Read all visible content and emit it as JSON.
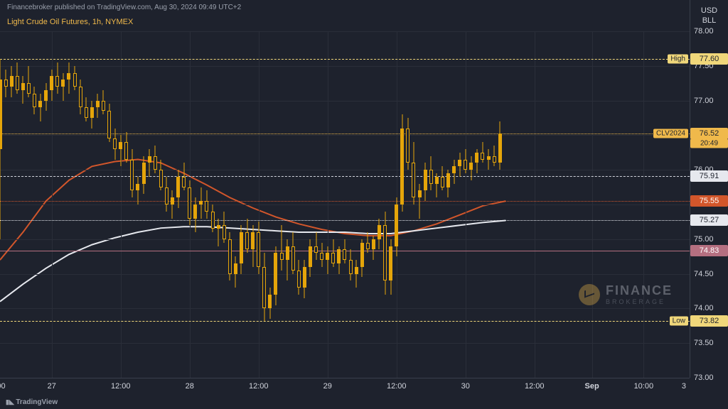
{
  "publish_line": "Financebroker published on TradingView.com, Aug 30, 2024 09:49 UTC+2",
  "title_line": "Light Crude Oil Futures, 1h, NYMEX",
  "footer": "TradingView",
  "unit_top": "USD",
  "unit_bottom": "BLL",
  "watermark": {
    "line1": "FINANCE",
    "line2": "BROKERAGE"
  },
  "palette": {
    "bg": "#1e222d",
    "grid": "#2a2e39",
    "axis_text": "#d1d4dc",
    "title": "#f0b94b",
    "candle_up": "#e5a50a",
    "candle_dn": "#e5a50a",
    "candle_wick": "#e5a50a",
    "candle_body_border": "#1e222d"
  },
  "y_axis": {
    "min": 73.0,
    "max": 78.0,
    "ticks": [
      73.0,
      73.5,
      74.0,
      74.5,
      75.0,
      75.5,
      76.0,
      76.5,
      77.0,
      77.5,
      78.0
    ],
    "decimals": 2
  },
  "x_axis": {
    "span": 120,
    "ticks": [
      {
        "i": 0,
        "label": ":00"
      },
      {
        "i": 9,
        "label": "27"
      },
      {
        "i": 21,
        "label": "12:00"
      },
      {
        "i": 33,
        "label": "28"
      },
      {
        "i": 45,
        "label": "12:00"
      },
      {
        "i": 57,
        "label": "29"
      },
      {
        "i": 69,
        "label": "12:00"
      },
      {
        "i": 81,
        "label": "30"
      },
      {
        "i": 93,
        "label": "12:00"
      },
      {
        "i": 103,
        "label": "Sep"
      },
      {
        "i": 112,
        "label": "10:00"
      },
      {
        "i": 119,
        "label": "3"
      }
    ],
    "vgrids": [
      9,
      21,
      33,
      45,
      57,
      69,
      81,
      93,
      103,
      112
    ]
  },
  "hlines": [
    {
      "name": "high",
      "y": 77.6,
      "color": "#f0d77a",
      "dash": true,
      "left_label": "High",
      "left_label_bg": "#f0d77a",
      "left_label_fg": "#1e222d",
      "right_label": "77.60",
      "right_label_bg": "#f0d77a",
      "right_label_fg": "#1e222d"
    },
    {
      "name": "current",
      "y": 76.52,
      "color": "#f0b94b",
      "dash": true,
      "right_badge": "CLV2024",
      "right_label": "76.52",
      "right_sublabel": "20:49",
      "right_label_bg": "#f0b94b",
      "right_label_fg": "#1e222d",
      "badge_bg": "#f0b94b",
      "badge_fg": "#1e222d"
    },
    {
      "name": "prevclose",
      "y": 75.91,
      "color": "#d1d4dc",
      "dash": true,
      "right_label": "75.91",
      "right_label_bg": "#e6e8ee",
      "right_label_fg": "#1e222d"
    },
    {
      "name": "ma1-end",
      "y": 75.55,
      "color": "#d2562b",
      "dash": false,
      "right_label": "75.55",
      "right_label_bg": "#d2562b",
      "right_label_fg": "#ffffff"
    },
    {
      "name": "ma2-end",
      "y": 75.27,
      "color": "#e6e8ee",
      "dash": false,
      "right_label": "75.27",
      "right_label_bg": "#e6e8ee",
      "right_label_fg": "#1e222d"
    },
    {
      "name": "support",
      "y": 74.83,
      "color": "#b56f80",
      "dash": false,
      "solid": true,
      "right_label": "74.83",
      "right_label_bg": "#b56f80",
      "right_label_fg": "#ffffff"
    },
    {
      "name": "low",
      "y": 73.82,
      "color": "#f0d77a",
      "dash": true,
      "left_label": "Low",
      "left_label_bg": "#f0d77a",
      "left_label_fg": "#1e222d",
      "right_label": "73.82",
      "right_label_bg": "#f0d77a",
      "right_label_fg": "#1e222d"
    }
  ],
  "ma_lines": [
    {
      "name": "ma-orange",
      "color": "#d2562b",
      "width": 2,
      "points": [
        [
          0,
          74.7
        ],
        [
          4,
          75.1
        ],
        [
          8,
          75.55
        ],
        [
          12,
          75.85
        ],
        [
          16,
          76.05
        ],
        [
          20,
          76.12
        ],
        [
          24,
          76.15
        ],
        [
          28,
          76.1
        ],
        [
          32,
          75.95
        ],
        [
          36,
          75.78
        ],
        [
          40,
          75.6
        ],
        [
          44,
          75.45
        ],
        [
          48,
          75.32
        ],
        [
          52,
          75.22
        ],
        [
          56,
          75.14
        ],
        [
          60,
          75.08
        ],
        [
          64,
          75.05
        ],
        [
          68,
          75.05
        ],
        [
          72,
          75.12
        ],
        [
          76,
          75.22
        ],
        [
          80,
          75.35
        ],
        [
          84,
          75.48
        ],
        [
          88,
          75.55
        ]
      ]
    },
    {
      "name": "ma-white",
      "color": "#e6e8ee",
      "width": 2,
      "points": [
        [
          0,
          74.1
        ],
        [
          4,
          74.35
        ],
        [
          8,
          74.58
        ],
        [
          12,
          74.78
        ],
        [
          16,
          74.92
        ],
        [
          20,
          75.02
        ],
        [
          24,
          75.1
        ],
        [
          28,
          75.16
        ],
        [
          32,
          75.18
        ],
        [
          36,
          75.18
        ],
        [
          40,
          75.16
        ],
        [
          44,
          75.14
        ],
        [
          48,
          75.12
        ],
        [
          52,
          75.1
        ],
        [
          56,
          75.1
        ],
        [
          60,
          75.1
        ],
        [
          64,
          75.08
        ],
        [
          68,
          75.08
        ],
        [
          72,
          75.12
        ],
        [
          76,
          75.16
        ],
        [
          80,
          75.2
        ],
        [
          84,
          75.24
        ],
        [
          88,
          75.27
        ]
      ]
    }
  ],
  "candles": [
    {
      "i": 0,
      "o": 76.3,
      "h": 77.6,
      "l": 75.0,
      "c": 77.3
    },
    {
      "i": 1,
      "o": 77.3,
      "h": 77.45,
      "l": 77.05,
      "c": 77.2
    },
    {
      "i": 2,
      "o": 77.2,
      "h": 77.5,
      "l": 77.05,
      "c": 77.35
    },
    {
      "i": 3,
      "o": 77.35,
      "h": 77.55,
      "l": 77.1,
      "c": 77.15
    },
    {
      "i": 4,
      "o": 77.15,
      "h": 77.35,
      "l": 76.95,
      "c": 77.25
    },
    {
      "i": 5,
      "o": 77.25,
      "h": 77.5,
      "l": 77.05,
      "c": 77.1
    },
    {
      "i": 6,
      "o": 77.1,
      "h": 77.2,
      "l": 76.8,
      "c": 76.9
    },
    {
      "i": 7,
      "o": 76.9,
      "h": 77.1,
      "l": 76.7,
      "c": 77.0
    },
    {
      "i": 8,
      "o": 77.0,
      "h": 77.25,
      "l": 76.85,
      "c": 77.15
    },
    {
      "i": 9,
      "o": 77.15,
      "h": 77.45,
      "l": 77.0,
      "c": 77.35
    },
    {
      "i": 10,
      "o": 77.35,
      "h": 77.55,
      "l": 77.1,
      "c": 77.2
    },
    {
      "i": 11,
      "o": 77.2,
      "h": 77.4,
      "l": 77.0,
      "c": 77.3
    },
    {
      "i": 12,
      "o": 77.3,
      "h": 77.55,
      "l": 77.1,
      "c": 77.4
    },
    {
      "i": 13,
      "o": 77.4,
      "h": 77.5,
      "l": 77.15,
      "c": 77.2
    },
    {
      "i": 14,
      "o": 77.2,
      "h": 77.3,
      "l": 76.8,
      "c": 76.9
    },
    {
      "i": 15,
      "o": 76.9,
      "h": 77.05,
      "l": 76.7,
      "c": 76.75
    },
    {
      "i": 16,
      "o": 76.75,
      "h": 77.0,
      "l": 76.6,
      "c": 76.9
    },
    {
      "i": 17,
      "o": 76.9,
      "h": 77.1,
      "l": 76.75,
      "c": 77.0
    },
    {
      "i": 18,
      "o": 77.0,
      "h": 77.15,
      "l": 76.8,
      "c": 76.85
    },
    {
      "i": 19,
      "o": 76.85,
      "h": 76.95,
      "l": 76.4,
      "c": 76.45
    },
    {
      "i": 20,
      "o": 76.45,
      "h": 76.6,
      "l": 76.15,
      "c": 76.3
    },
    {
      "i": 21,
      "o": 76.3,
      "h": 76.5,
      "l": 76.05,
      "c": 76.4
    },
    {
      "i": 22,
      "o": 76.4,
      "h": 76.55,
      "l": 76.1,
      "c": 76.15
    },
    {
      "i": 23,
      "o": 76.15,
      "h": 76.3,
      "l": 75.6,
      "c": 75.7
    },
    {
      "i": 24,
      "o": 75.7,
      "h": 75.9,
      "l": 75.5,
      "c": 75.8
    },
    {
      "i": 25,
      "o": 75.8,
      "h": 76.2,
      "l": 75.65,
      "c": 76.1
    },
    {
      "i": 26,
      "o": 76.1,
      "h": 76.3,
      "l": 75.9,
      "c": 76.2
    },
    {
      "i": 27,
      "o": 76.2,
      "h": 76.35,
      "l": 75.95,
      "c": 76.0
    },
    {
      "i": 28,
      "o": 76.0,
      "h": 76.15,
      "l": 75.7,
      "c": 75.75
    },
    {
      "i": 29,
      "o": 75.75,
      "h": 75.9,
      "l": 75.4,
      "c": 75.5
    },
    {
      "i": 30,
      "o": 75.5,
      "h": 75.7,
      "l": 75.3,
      "c": 75.6
    },
    {
      "i": 31,
      "o": 75.6,
      "h": 76.0,
      "l": 75.45,
      "c": 75.9
    },
    {
      "i": 32,
      "o": 75.9,
      "h": 76.1,
      "l": 75.7,
      "c": 75.75
    },
    {
      "i": 33,
      "o": 75.75,
      "h": 75.85,
      "l": 75.2,
      "c": 75.3
    },
    {
      "i": 34,
      "o": 75.3,
      "h": 75.6,
      "l": 75.1,
      "c": 75.5
    },
    {
      "i": 35,
      "o": 75.5,
      "h": 75.75,
      "l": 75.3,
      "c": 75.55
    },
    {
      "i": 36,
      "o": 75.55,
      "h": 75.7,
      "l": 75.3,
      "c": 75.4
    },
    {
      "i": 37,
      "o": 75.4,
      "h": 75.5,
      "l": 75.1,
      "c": 75.15
    },
    {
      "i": 38,
      "o": 75.15,
      "h": 75.3,
      "l": 74.9,
      "c": 75.2
    },
    {
      "i": 39,
      "o": 75.2,
      "h": 75.4,
      "l": 74.95,
      "c": 75.0
    },
    {
      "i": 40,
      "o": 75.0,
      "h": 75.1,
      "l": 74.4,
      "c": 74.5
    },
    {
      "i": 41,
      "o": 74.5,
      "h": 74.75,
      "l": 74.3,
      "c": 74.65
    },
    {
      "i": 42,
      "o": 74.65,
      "h": 75.2,
      "l": 74.5,
      "c": 75.1
    },
    {
      "i": 43,
      "o": 75.1,
      "h": 75.3,
      "l": 74.8,
      "c": 74.85
    },
    {
      "i": 44,
      "o": 74.85,
      "h": 75.2,
      "l": 74.6,
      "c": 75.1
    },
    {
      "i": 45,
      "o": 75.1,
      "h": 75.25,
      "l": 74.5,
      "c": 74.6
    },
    {
      "i": 46,
      "o": 74.6,
      "h": 74.8,
      "l": 73.82,
      "c": 74.0
    },
    {
      "i": 47,
      "o": 74.0,
      "h": 74.3,
      "l": 73.85,
      "c": 74.2
    },
    {
      "i": 48,
      "o": 74.2,
      "h": 74.9,
      "l": 74.05,
      "c": 74.8
    },
    {
      "i": 49,
      "o": 74.8,
      "h": 75.2,
      "l": 74.55,
      "c": 74.7
    },
    {
      "i": 50,
      "o": 74.7,
      "h": 75.0,
      "l": 74.4,
      "c": 74.9
    },
    {
      "i": 51,
      "o": 74.9,
      "h": 75.1,
      "l": 74.5,
      "c": 74.55
    },
    {
      "i": 52,
      "o": 74.55,
      "h": 74.7,
      "l": 74.2,
      "c": 74.3
    },
    {
      "i": 53,
      "o": 74.3,
      "h": 74.7,
      "l": 74.15,
      "c": 74.6
    },
    {
      "i": 54,
      "o": 74.6,
      "h": 75.0,
      "l": 74.45,
      "c": 74.9
    },
    {
      "i": 55,
      "o": 74.9,
      "h": 75.1,
      "l": 74.7,
      "c": 74.8
    },
    {
      "i": 56,
      "o": 74.8,
      "h": 74.95,
      "l": 74.6,
      "c": 74.7
    },
    {
      "i": 57,
      "o": 74.7,
      "h": 74.9,
      "l": 74.5,
      "c": 74.8
    },
    {
      "i": 58,
      "o": 74.8,
      "h": 75.0,
      "l": 74.6,
      "c": 74.65
    },
    {
      "i": 59,
      "o": 74.65,
      "h": 74.9,
      "l": 74.5,
      "c": 74.85
    },
    {
      "i": 60,
      "o": 74.85,
      "h": 75.0,
      "l": 74.65,
      "c": 74.7
    },
    {
      "i": 61,
      "o": 74.7,
      "h": 74.85,
      "l": 74.4,
      "c": 74.5
    },
    {
      "i": 62,
      "o": 74.5,
      "h": 74.7,
      "l": 74.3,
      "c": 74.6
    },
    {
      "i": 63,
      "o": 74.6,
      "h": 75.0,
      "l": 74.45,
      "c": 74.95
    },
    {
      "i": 64,
      "o": 74.95,
      "h": 75.1,
      "l": 74.8,
      "c": 74.85
    },
    {
      "i": 65,
      "o": 74.85,
      "h": 75.05,
      "l": 74.7,
      "c": 75.0
    },
    {
      "i": 66,
      "o": 75.0,
      "h": 75.3,
      "l": 74.85,
      "c": 75.2
    },
    {
      "i": 67,
      "o": 75.2,
      "h": 75.4,
      "l": 74.2,
      "c": 74.4
    },
    {
      "i": 68,
      "o": 74.4,
      "h": 75.0,
      "l": 74.2,
      "c": 74.9
    },
    {
      "i": 69,
      "o": 74.9,
      "h": 75.6,
      "l": 74.75,
      "c": 75.5
    },
    {
      "i": 70,
      "o": 75.5,
      "h": 76.8,
      "l": 75.4,
      "c": 76.6
    },
    {
      "i": 71,
      "o": 76.6,
      "h": 76.75,
      "l": 76.0,
      "c": 76.1
    },
    {
      "i": 72,
      "o": 76.1,
      "h": 76.4,
      "l": 75.5,
      "c": 75.6
    },
    {
      "i": 73,
      "o": 75.6,
      "h": 75.8,
      "l": 75.3,
      "c": 75.7
    },
    {
      "i": 74,
      "o": 75.7,
      "h": 76.1,
      "l": 75.55,
      "c": 76.0
    },
    {
      "i": 75,
      "o": 76.0,
      "h": 76.2,
      "l": 75.7,
      "c": 75.8
    },
    {
      "i": 76,
      "o": 75.8,
      "h": 75.95,
      "l": 75.6,
      "c": 75.9
    },
    {
      "i": 77,
      "o": 75.9,
      "h": 76.05,
      "l": 75.7,
      "c": 75.75
    },
    {
      "i": 78,
      "o": 75.75,
      "h": 76.0,
      "l": 75.6,
      "c": 75.95
    },
    {
      "i": 79,
      "o": 75.95,
      "h": 76.15,
      "l": 75.8,
      "c": 76.05
    },
    {
      "i": 80,
      "o": 76.05,
      "h": 76.25,
      "l": 75.9,
      "c": 76.15
    },
    {
      "i": 81,
      "o": 76.15,
      "h": 76.3,
      "l": 75.95,
      "c": 76.0
    },
    {
      "i": 82,
      "o": 76.0,
      "h": 76.2,
      "l": 75.85,
      "c": 76.1
    },
    {
      "i": 83,
      "o": 76.1,
      "h": 76.3,
      "l": 75.95,
      "c": 76.25
    },
    {
      "i": 84,
      "o": 76.25,
      "h": 76.4,
      "l": 76.1,
      "c": 76.15
    },
    {
      "i": 85,
      "o": 76.15,
      "h": 76.3,
      "l": 76.0,
      "c": 76.2
    },
    {
      "i": 86,
      "o": 76.2,
      "h": 76.35,
      "l": 76.05,
      "c": 76.1
    },
    {
      "i": 87,
      "o": 76.1,
      "h": 76.7,
      "l": 76.0,
      "c": 76.52
    }
  ]
}
